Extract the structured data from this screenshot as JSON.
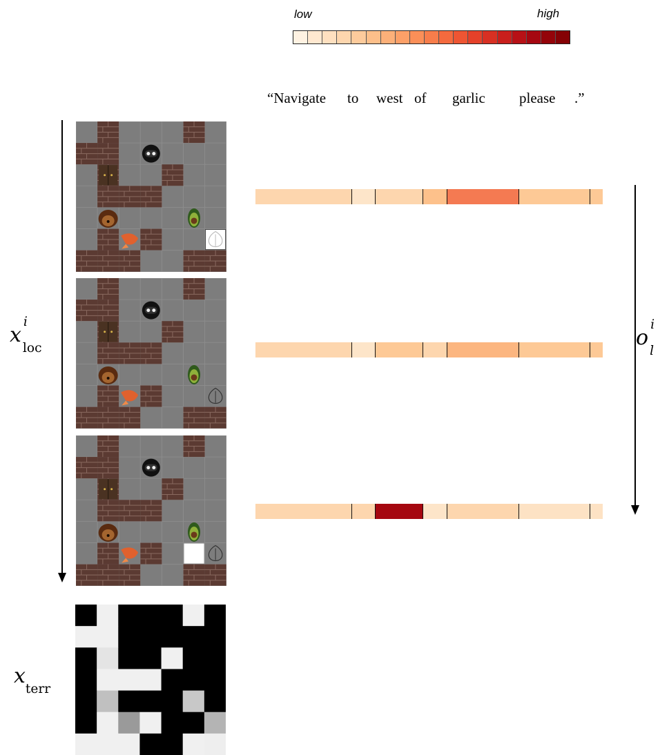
{
  "legend": {
    "low_label": "low",
    "high_label": "high",
    "colors": [
      "#fff2e2",
      "#ffe8d0",
      "#fee0c0",
      "#fdd6ae",
      "#fdcb9c",
      "#fdbf8a",
      "#fcb079",
      "#fca068",
      "#fb8f58",
      "#f87d4b",
      "#f46a3e",
      "#ee5533",
      "#e5412a",
      "#d83023",
      "#c91f1c",
      "#b71116",
      "#a50710",
      "#940409",
      "#850205"
    ]
  },
  "sentence": {
    "words": [
      "“Navigate",
      "to",
      "west",
      "of",
      "garlic",
      "please",
      ".”"
    ]
  },
  "labels": {
    "x_loc": {
      "base": "x",
      "sub": "loc",
      "sup": "i"
    },
    "x_terr": {
      "base": "x",
      "sub": "terr"
    },
    "o_l": {
      "base": "o",
      "sub": "l",
      "sup": "i"
    }
  },
  "attention_rows": [
    {
      "segments": [
        "#fdd6ae",
        "#fde5c9",
        "#fdd6ae",
        "#fdc18b",
        "#f47a52",
        "#fdc996",
        "#fdc996"
      ]
    },
    {
      "segments": [
        "#fdd6ae",
        "#fde5c9",
        "#fdc996",
        "#fdd6ae",
        "#fcb680",
        "#fdc996",
        "#fdc996"
      ]
    },
    {
      "segments": [
        "#fdd6ae",
        "#fdd6ae",
        "#a50710",
        "#fde5c9",
        "#fdd6ae",
        "#fde2c4",
        "#fde2c4"
      ]
    }
  ],
  "maps": [
    {
      "highlight_cell": [
        6,
        5
      ],
      "highlight_style": "solid-white"
    },
    {
      "highlight_cell": null,
      "highlight_style": "none"
    },
    {
      "highlight_cell": [
        6,
        5
      ],
      "highlight_style": "solid-white-left"
    }
  ],
  "terrain_grid": [
    [
      "#000000",
      "#f0f0f0",
      "#000000",
      "#000000",
      "#000000",
      "#f0f0f0",
      "#000000"
    ],
    [
      "#f0f0f0",
      "#f0f0f0",
      "#000000",
      "#000000",
      "#000000",
      "#000000",
      "#000000"
    ],
    [
      "#000000",
      "#e4e4e4",
      "#000000",
      "#000000",
      "#f0f0f0",
      "#000000",
      "#000000"
    ],
    [
      "#000000",
      "#f0f0f0",
      "#f0f0f0",
      "#f0f0f0",
      "#000000",
      "#000000",
      "#000000"
    ],
    [
      "#000000",
      "#c0c0c0",
      "#000000",
      "#000000",
      "#000000",
      "#c8c8c8",
      "#000000"
    ],
    [
      "#000000",
      "#f0f0f0",
      "#9a9a9a",
      "#f0f0f0",
      "#000000",
      "#000000",
      "#b4b4b4"
    ],
    [
      "#f0f0f0",
      "#f0f0f0",
      "#f0f0f0",
      "#000000",
      "#000000",
      "#f0f0f0",
      "#eeeeee"
    ]
  ]
}
